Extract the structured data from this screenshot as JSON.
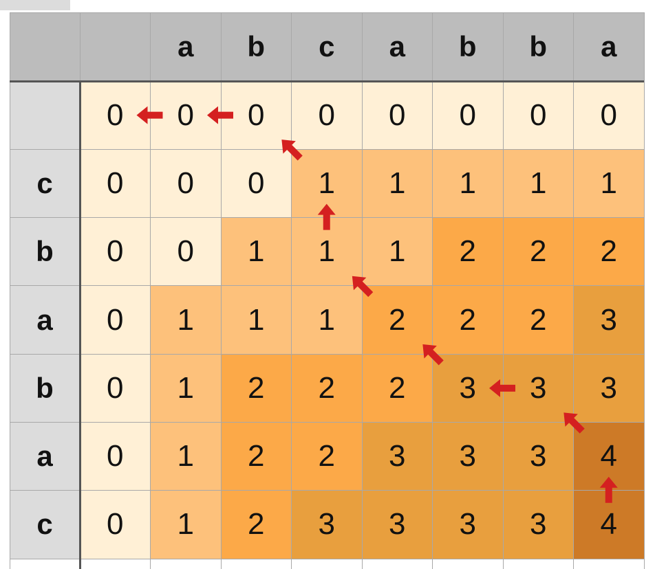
{
  "table": {
    "col_headers": [
      "",
      "a",
      "b",
      "c",
      "a",
      "b",
      "b",
      "a"
    ],
    "row_headers": [
      "",
      "c",
      "b",
      "a",
      "b",
      "a",
      "c"
    ],
    "values": [
      [
        0,
        0,
        0,
        0,
        0,
        0,
        0,
        0
      ],
      [
        0,
        0,
        0,
        1,
        1,
        1,
        1,
        1
      ],
      [
        0,
        0,
        1,
        1,
        1,
        2,
        2,
        2
      ],
      [
        0,
        1,
        1,
        1,
        2,
        2,
        2,
        3
      ],
      [
        0,
        1,
        2,
        2,
        2,
        3,
        3,
        3
      ],
      [
        0,
        1,
        2,
        2,
        3,
        3,
        3,
        4
      ],
      [
        0,
        1,
        2,
        3,
        3,
        3,
        3,
        4
      ]
    ],
    "level_colors": [
      "#fff0d6",
      "#fdc17b",
      "#fca948",
      "#e89f3e",
      "#cd7a27"
    ],
    "header_bg": "#bcbcbc",
    "row_header_bg": "#dcdcdc",
    "arrow_color": "#d42020"
  },
  "traceback": [
    {
      "row": 0,
      "col": 1,
      "dir": "left"
    },
    {
      "row": 0,
      "col": 2,
      "dir": "left"
    },
    {
      "row": 1,
      "col": 3,
      "dir": "up-left"
    },
    {
      "row": 2,
      "col": 3,
      "dir": "up"
    },
    {
      "row": 3,
      "col": 4,
      "dir": "up-left"
    },
    {
      "row": 4,
      "col": 5,
      "dir": "up-left"
    },
    {
      "row": 4,
      "col": 6,
      "dir": "left"
    },
    {
      "row": 5,
      "col": 7,
      "dir": "up-left"
    },
    {
      "row": 6,
      "col": 7,
      "dir": "up"
    }
  ]
}
